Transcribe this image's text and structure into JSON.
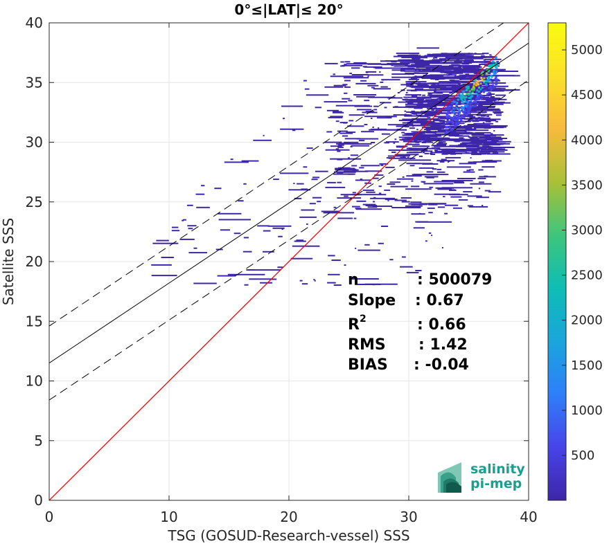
{
  "chart_data": {
    "type": "heatmap",
    "title": "0°≤|LAT|≤ 20°",
    "xlabel": "TSG (GOSUD-Research-vessel) SSS",
    "ylabel": "Satellite SSS",
    "xlim": [
      0,
      40
    ],
    "ylim": [
      0,
      40
    ],
    "xticks": [
      "0",
      "10",
      "20",
      "30",
      "40"
    ],
    "yticks": [
      "0",
      "5",
      "10",
      "15",
      "20",
      "25",
      "30",
      "35",
      "40"
    ],
    "grid": true,
    "colorbar": {
      "range": [
        1,
        5300
      ],
      "ticks": [
        "500",
        "1000",
        "1500",
        "2000",
        "2500",
        "3000",
        "3500",
        "4000",
        "4500",
        "5000"
      ],
      "tick_values": [
        500,
        1000,
        1500,
        2000,
        2500,
        3000,
        3500,
        4000,
        4500,
        5000
      ],
      "colormap": [
        "#3e26a8",
        "#4744e8",
        "#2f7ffa",
        "#1aa5db",
        "#0ebdb5",
        "#3ec57c",
        "#a9c037",
        "#f8ba3d",
        "#fbe12a",
        "#f9fb0e"
      ]
    },
    "lines": [
      {
        "kind": "identity",
        "x": [
          0,
          40
        ],
        "y": [
          0,
          40
        ],
        "color": "#ff0000"
      },
      {
        "kind": "regression",
        "x": [
          0,
          40
        ],
        "y": [
          11.5,
          38.3
        ],
        "color": "#000000"
      },
      {
        "kind": "upper-bound",
        "x": [
          0,
          40
        ],
        "y": [
          14.6,
          41.4
        ],
        "color": "#000000"
      },
      {
        "kind": "lower-bound",
        "x": [
          0,
          40
        ],
        "y": [
          8.4,
          35.2
        ],
        "color": "#000000"
      }
    ],
    "stats": [
      {
        "label": "n",
        "value": ": 500079"
      },
      {
        "label": "Slope",
        "value": ": 0.67"
      },
      {
        "label": "R",
        "sup": "2",
        "value": ": 0.66"
      },
      {
        "label": "RMS",
        "value": ": 1.42"
      },
      {
        "label": "BIAS",
        "value": ": -0.04"
      }
    ]
  },
  "logo": {
    "line1": "salinity",
    "line2": "pi-mep",
    "color": "#1a9e8f"
  }
}
